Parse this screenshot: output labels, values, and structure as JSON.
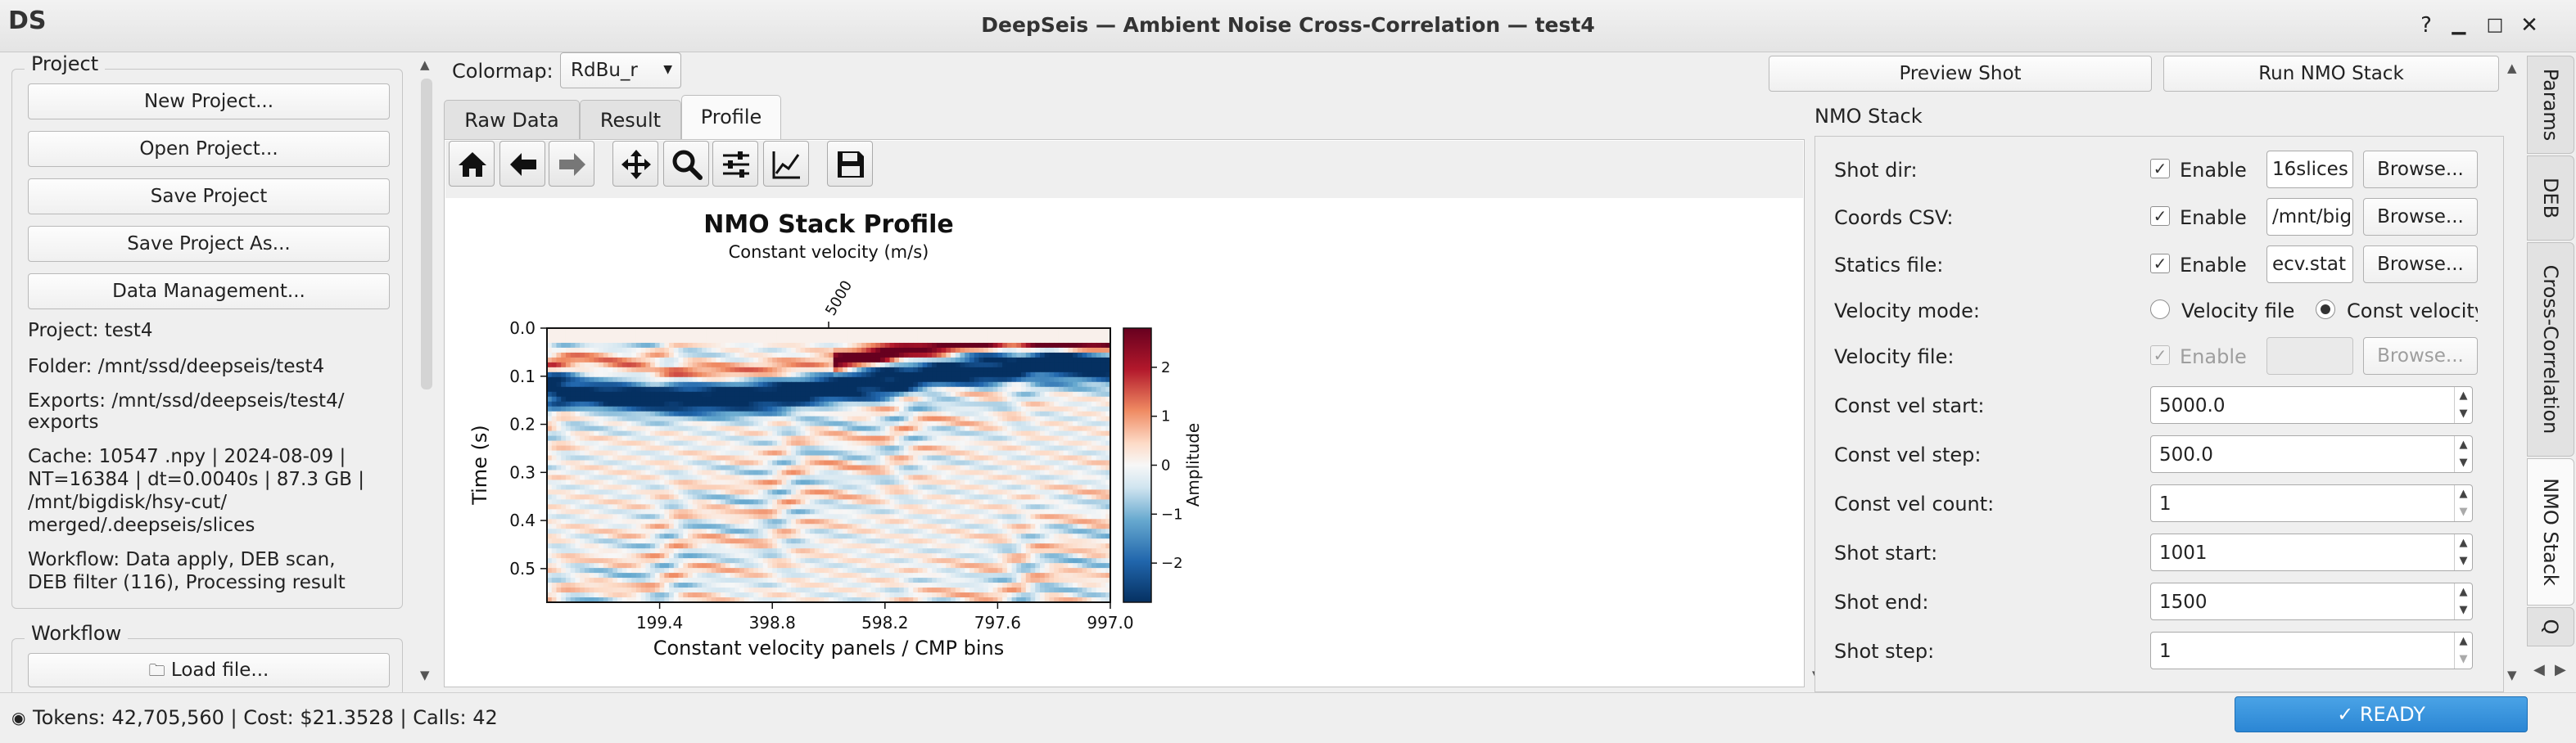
{
  "window": {
    "logo": "DS",
    "title": "DeepSeis — Ambient Noise Cross-Correlation — test4"
  },
  "project": {
    "group_title": "Project",
    "buttons": [
      "New Project...",
      "Open Project...",
      "Save Project",
      "Save Project As...",
      "Data Management..."
    ],
    "info": {
      "project": "Project: test4",
      "folder": "Folder: /mnt/ssd/deepseis/test4",
      "exports_1": "Exports: /mnt/ssd/deepseis/test4/",
      "exports_2": "exports",
      "cache_1": "Cache: 10547 .npy | 2024-08-09 |",
      "cache_2": "NT=16384 | dt=0.0040s | 87.3 GB |",
      "cache_3": "/mnt/bigdisk/hsy-cut/",
      "cache_4": "merged/.deepseis/slices",
      "workflow_1": "Workflow: Data apply, DEB scan,",
      "workflow_2": "DEB filter (116), Processing result"
    }
  },
  "workflow": {
    "group_title": "Workflow",
    "load_file": "Load file..."
  },
  "center": {
    "colormap_label": "Colormap:",
    "colormap_value": "RdBu_r",
    "tabs": [
      "Raw Data",
      "Result",
      "Profile"
    ],
    "active_tab": "Profile",
    "toolbar_icons": [
      "home-icon",
      "back-arrow-icon",
      "forward-arrow-icon",
      "pan-icon",
      "zoom-icon",
      "configure-subplots-icon",
      "edit-axis-icon",
      "save-icon"
    ]
  },
  "chart_data": {
    "type": "heatmap",
    "title": "NMO Stack Profile",
    "subtitle": "Constant velocity (m/s)",
    "top_tick_label": "5000",
    "xlabel": "Constant velocity panels / CMP bins",
    "ylabel": "Time (s)",
    "x_ticks": [
      "199.4",
      "398.8",
      "598.2",
      "797.6",
      "997.0"
    ],
    "x_tick_values": [
      199.4,
      398.8,
      598.2,
      797.6,
      997.0
    ],
    "xlim": [
      0,
      997.0
    ],
    "y_ticks": [
      "0.0",
      "0.1",
      "0.2",
      "0.3",
      "0.4",
      "0.5"
    ],
    "y_tick_values": [
      0.0,
      0.1,
      0.2,
      0.3,
      0.4,
      0.5
    ],
    "ylim": [
      0.0,
      0.57
    ],
    "colormap": "RdBu_r",
    "colorbar_label": "Amplitude",
    "colorbar_ticks": [
      "2",
      "1",
      "0",
      "−1",
      "−2"
    ],
    "colorbar_tick_values": [
      2,
      1,
      0,
      -1,
      -2
    ],
    "colorbar_range": [
      -2.8,
      2.8
    ]
  },
  "right": {
    "preview_button": "Preview Shot",
    "run_button": "Run NMO Stack",
    "section_title": "NMO Stack",
    "shot_dir_label": "Shot dir:",
    "coords_label": "Coords CSV:",
    "statics_label": "Statics file:",
    "enable_label": "Enable",
    "browse_label": "Browse...",
    "shot_dir_value": "16slices",
    "coords_value": "/mnt/big",
    "statics_value": "ecv.stat",
    "velocity_mode_label": "Velocity mode:",
    "velocity_mode_option1": "Velocity file",
    "velocity_mode_option2": "Const velocity",
    "velocity_file_label": "Velocity file:",
    "const_vel_start_label": "Const vel start:",
    "const_vel_start": "5000.0",
    "const_vel_step_label": "Const vel step:",
    "const_vel_step": "500.0",
    "const_vel_count_label": "Const vel count:",
    "const_vel_count": "1",
    "shot_start_label": "Shot start:",
    "shot_start": "1001",
    "shot_end_label": "Shot end:",
    "shot_end": "1500",
    "shot_step_label": "Shot step:",
    "shot_step": "1"
  },
  "side_tabs": [
    "Params",
    "DEB",
    "Cross-Correlation",
    "NMO Stack",
    "Q"
  ],
  "status": {
    "text": "Tokens: 42,705,560 | Cost: $21.3528 | Calls: 42",
    "ready": "✓ READY"
  }
}
